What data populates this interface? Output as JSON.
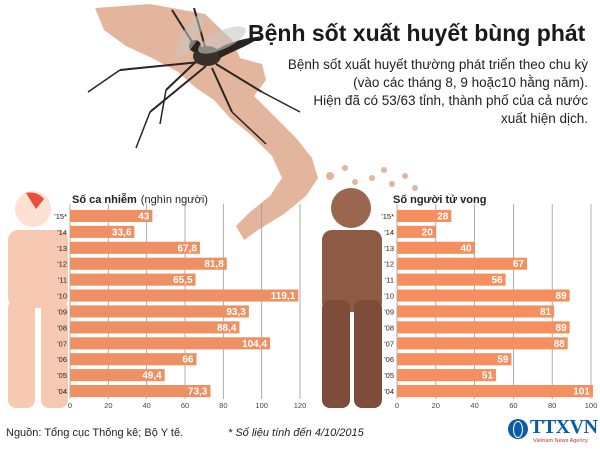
{
  "header": {
    "title": "Bệnh sốt xuất huyết bùng phát",
    "description_lines": [
      "Bệnh sốt xuất huyết thường phát triển theo chu kỳ",
      "(vào các tháng 8, 9 hoặc10 hằng năm).",
      "Hiện đã có 53/63 tỉnh, thành phố của cả nước",
      "xuất hiện dịch."
    ]
  },
  "footer": {
    "source": "Nguồn: Tổng cục Thống kê; Bộ Y tế.",
    "note": "* Số liệu tính đến 4/10/2015",
    "logo": "TTXVN",
    "logo_sub": "Vietnam News Agency"
  },
  "colors": {
    "infection_bar": "#ef9063",
    "death_bar": "#f5905e",
    "infection_figure": "#f7c9b2",
    "death_figure": "#8d5a44",
    "map": "#e3b59c",
    "grid": "#9a9a9a"
  },
  "chart_data": [
    {
      "type": "bar",
      "orientation": "horizontal",
      "title": "Số ca nhiễm",
      "title_unit": "(nghìn người)",
      "categories": [
        "'15*",
        "'14",
        "'13",
        "'12",
        "'11",
        "'10",
        "'09",
        "'08",
        "'07",
        "'06",
        "'05",
        "'04"
      ],
      "value_labels": [
        "43",
        "33,6",
        "67,8",
        "81,8",
        "65,5",
        "119,1",
        "93,3",
        "88,4",
        "104,4",
        "66",
        "49,4",
        "73,3"
      ],
      "values": [
        43,
        33.6,
        67.8,
        81.8,
        65.5,
        119.1,
        93.3,
        88.4,
        104.4,
        66,
        49.4,
        73.3
      ],
      "xlim": [
        0,
        120
      ],
      "xticks": [
        "0",
        "20",
        "40",
        "60",
        "80",
        "100",
        "120"
      ],
      "grid": true
    },
    {
      "type": "bar",
      "orientation": "horizontal",
      "title": "Số người tử vong",
      "categories": [
        "'15*",
        "'14",
        "'13",
        "'12",
        "'11",
        "'10",
        "'09",
        "'08",
        "'07",
        "'06",
        "'05",
        "'04"
      ],
      "value_labels": [
        "28",
        "20",
        "40",
        "67",
        "56",
        "89",
        "81",
        "89",
        "88",
        "59",
        "51",
        "101"
      ],
      "values": [
        28,
        20,
        40,
        67,
        56,
        89,
        81,
        89,
        88,
        59,
        51,
        101
      ],
      "xlim": [
        0,
        100
      ],
      "xticks": [
        "0",
        "20",
        "40",
        "60",
        "80",
        "100"
      ],
      "grid": true
    }
  ]
}
